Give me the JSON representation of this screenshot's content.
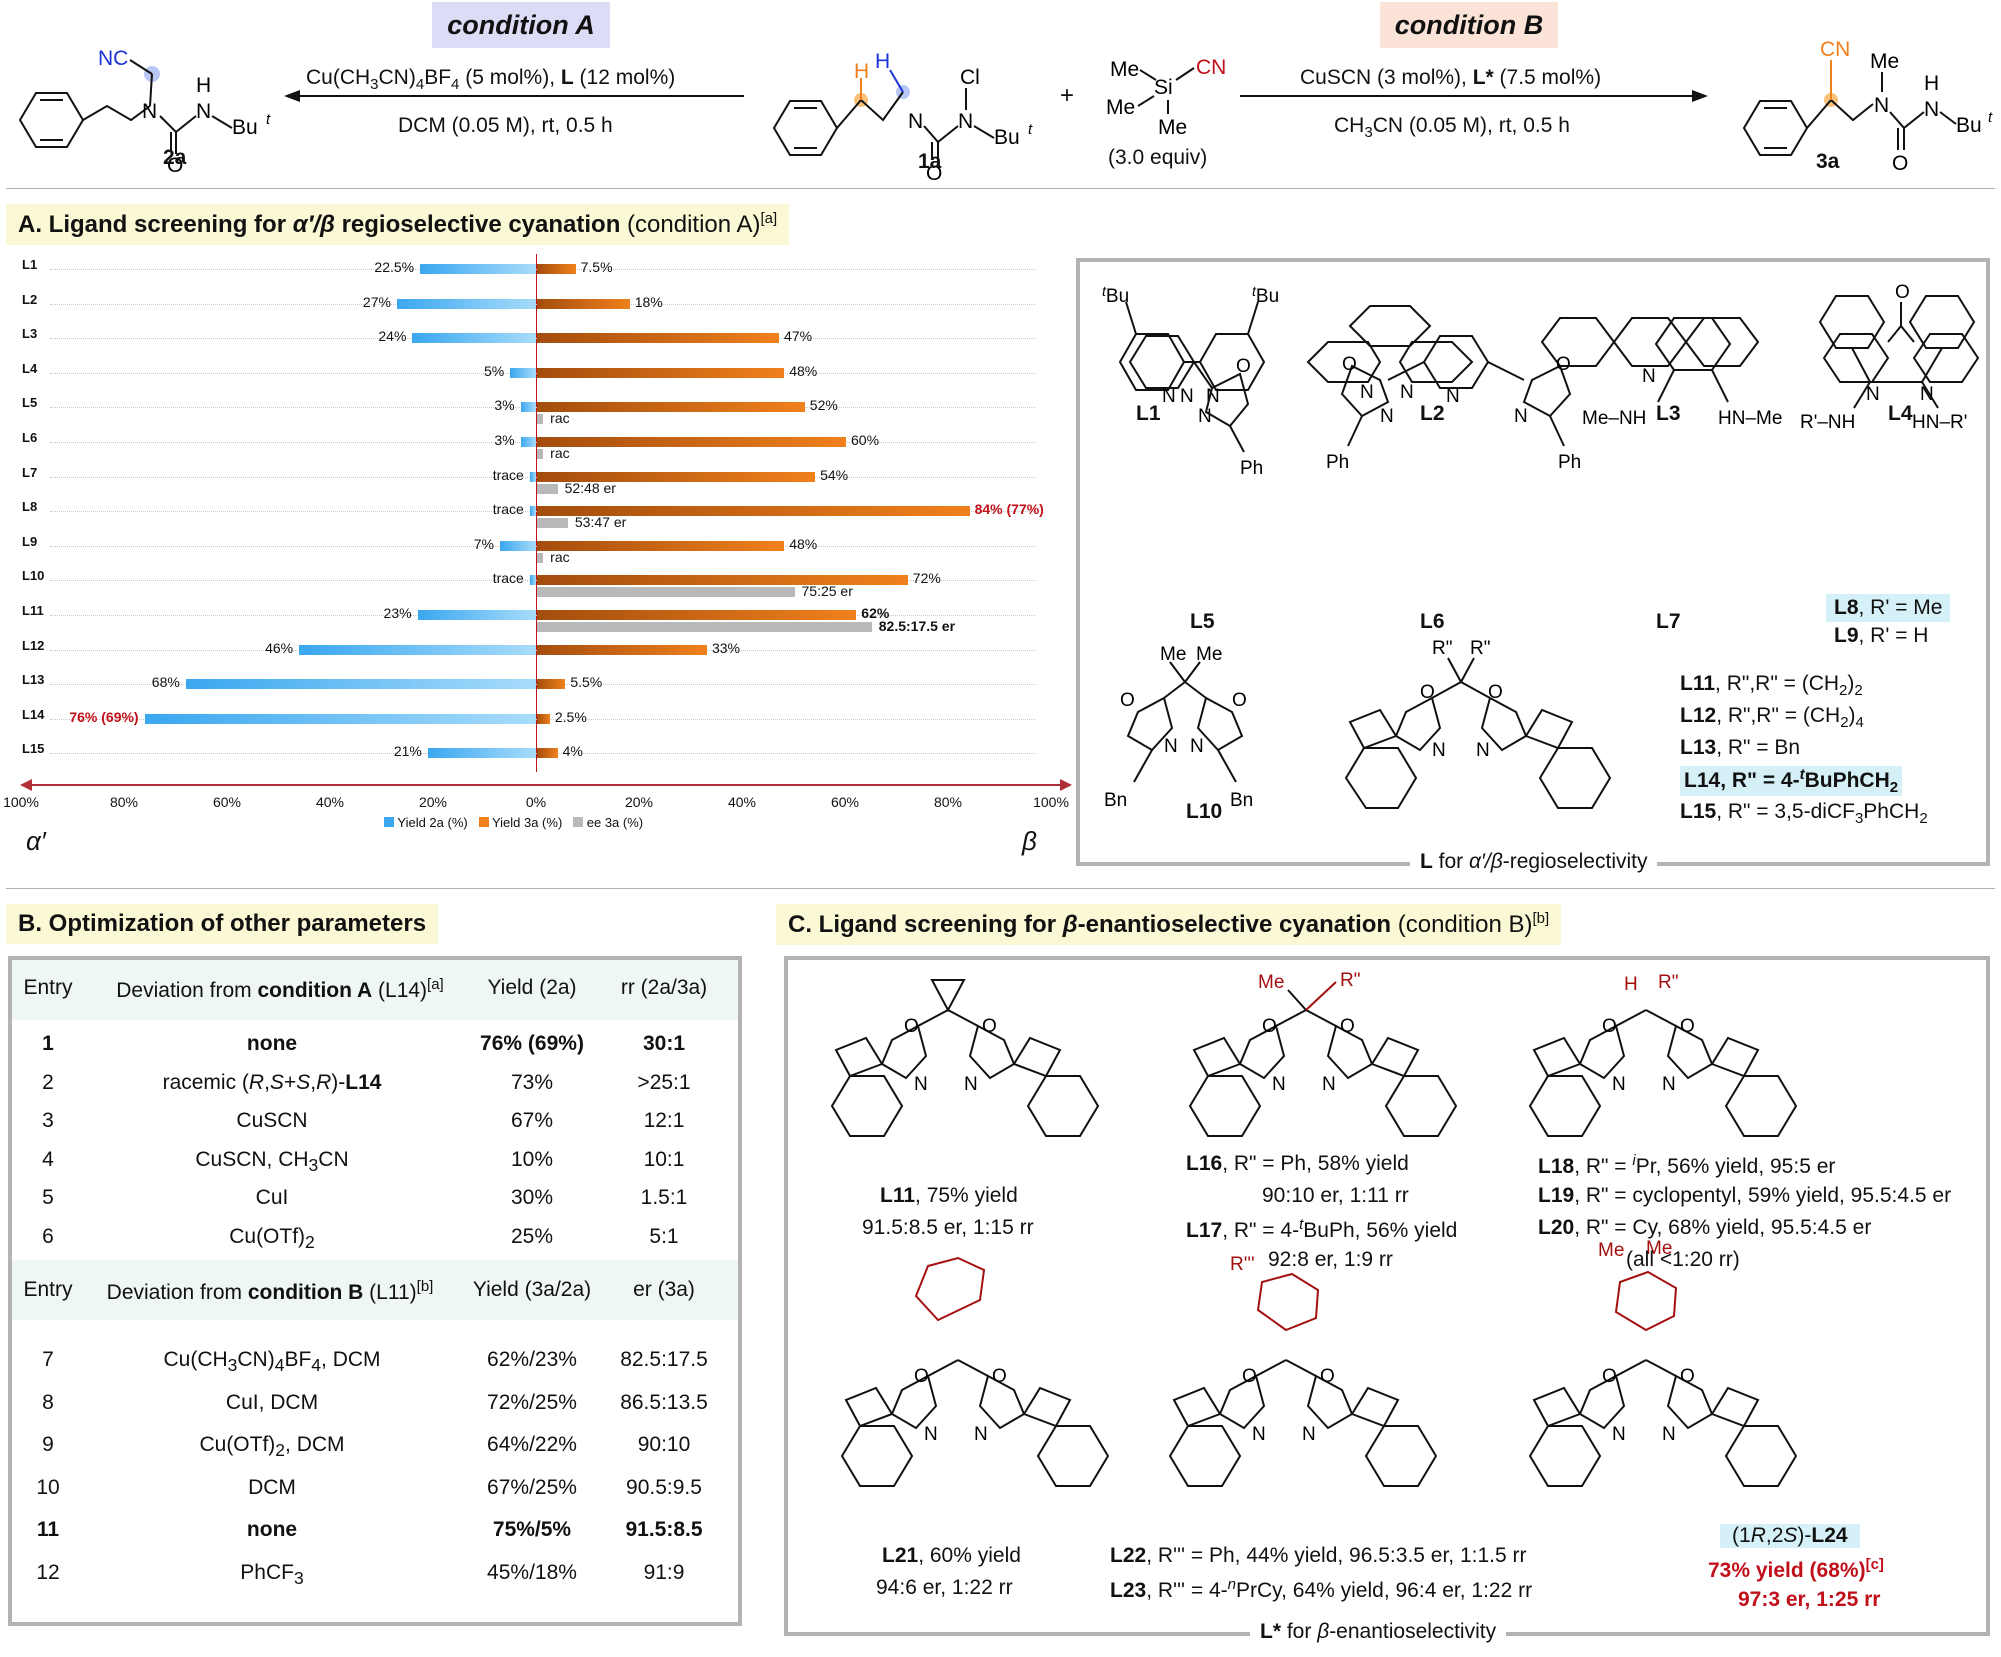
{
  "header": {
    "condition_a": "condition A",
    "condition_b": "condition B",
    "cond_a_line1_pre": "Cu(CH",
    "cond_a_line1_sub3": "3",
    "cond_a_line1_mid": "CN)",
    "cond_a_line1_sub4": "4",
    "cond_a_line1_post": "BF",
    "cond_a_line1_sub4b": "4",
    "cond_a_line1_cat": " (5 mol%), ",
    "cond_a_line1_L": "L",
    "cond_a_line1_end": " (12 mol%)",
    "cond_a_line2": "DCM (0.05 M), rt, 0.5 h",
    "cond_b_line1_pre": "CuSCN (3 mol%), ",
    "cond_b_line1_L": "L*",
    "cond_b_line1_end": " (7.5 mol%)",
    "cond_b_line2_pre": "CH",
    "cond_b_line2_sub": "3",
    "cond_b_line2_post": "CN (0.05 M), rt, 0.5 h",
    "plus": "+",
    "reagent_equiv": "(3.0 equiv)",
    "compound_2a": "2a",
    "compound_1a": "1a",
    "compound_3a": "3a"
  },
  "section_a": {
    "title_pre": "A. Ligand screening for ",
    "title_greek": "α′/β",
    "title_post": " regioselective cyanation",
    "title_cond": " (condition A)",
    "title_sup": "[a]"
  },
  "chart_data": {
    "type": "bar",
    "title": "Ligand screening for α′/β regioselective cyanation",
    "categories": [
      "L1",
      "L2",
      "L3",
      "L4",
      "L5",
      "L6",
      "L7",
      "L8",
      "L9",
      "L10",
      "L11",
      "L12",
      "L13",
      "L14",
      "L15"
    ],
    "series": [
      {
        "name": "Yield 2a (%)",
        "values": [
          22.5,
          27,
          24,
          5,
          3,
          3,
          1.2,
          1.2,
          7,
          1.2,
          23,
          46,
          68,
          76,
          21
        ],
        "labels": [
          "22.5%",
          "27%",
          "24%",
          "5%",
          "3%",
          "3%",
          "trace",
          "trace",
          "7%",
          "trace",
          "23%",
          "46%",
          "68%",
          "76% (69%)",
          "21%"
        ]
      },
      {
        "name": "Yield 3a (%)",
        "values": [
          7.5,
          18,
          47,
          48,
          52,
          60,
          54,
          84,
          48,
          72,
          62,
          33,
          5.5,
          2.5,
          4
        ],
        "labels": [
          "7.5%",
          "18%",
          "47%",
          "48%",
          "52%",
          "60%",
          "54%",
          "84% (77%)",
          "48%",
          "72%",
          "62%",
          "33%",
          "5.5%",
          "2.5%",
          "4%"
        ]
      },
      {
        "name": "ee 3a (%)",
        "values": [
          null,
          null,
          null,
          null,
          1.2,
          1.2,
          4,
          6,
          1.2,
          50,
          65,
          null,
          null,
          null,
          null
        ],
        "labels": [
          "",
          "",
          "",
          "",
          "rac",
          "rac",
          "52:48 er",
          "53:47 er",
          "rac",
          "75:25 er",
          "82.5:17.5 er",
          "",
          "",
          "",
          ""
        ]
      }
    ],
    "x_ticks": [
      "100%",
      "80%",
      "60%",
      "40%",
      "20%",
      "0%",
      "20%",
      "40%",
      "60%",
      "80%",
      "100%"
    ],
    "xlim": [
      -100,
      100
    ],
    "left_axis_label": "α′",
    "right_axis_label": "β",
    "legend": [
      "Yield 2a (%)",
      "Yield 3a (%)",
      "ee 3a (%)"
    ]
  },
  "ligands_a": {
    "L1": "L1",
    "L2": "L2",
    "L3": "L3",
    "L4": "L4",
    "L5": "L5",
    "L6": "L6",
    "L7": "L7",
    "L8_name": "L8",
    "L8_rest": ", R' = Me",
    "L9_name": "L9",
    "L9_rest": ", R' = H",
    "L10": "L10",
    "L11_name": "L11",
    "L11_rest": ", R\",R\" = (CH",
    "L11_sub": "2",
    "L11_end": ")",
    "L11_sub2": "2",
    "L12_name": "L12",
    "L12_rest": ", R\",R\" = (CH",
    "L12_sub": "2",
    "L12_end": ")",
    "L12_sub2": "4",
    "L13_name": "L13",
    "L13_rest": ", R\" = Bn",
    "L14_name": "L14",
    "L14_rest": ", R\" = 4-",
    "L14_sup": "t",
    "L14_end": "BuPhCH",
    "L14_sub": "2",
    "L15_name": "L15",
    "L15_rest": ", R\" = 3,5-diCF",
    "L15_sub": "3",
    "L15_end": "PhCH",
    "L15_sub2": "2",
    "caption_pre": "L",
    "caption_post": " for ",
    "caption_greek": "α′/β",
    "caption_end": "-regioselectivity"
  },
  "section_b": {
    "title": "B. Optimization of other parameters",
    "head1": {
      "entry": "Entry",
      "deviation_pre": "Deviation from ",
      "deviation_cond": "condition A",
      "deviation_lig": " (L14)",
      "deviation_sup": "[a]",
      "yield": "Yield (2a)",
      "rr": "rr (2a/3a)"
    },
    "rows_a": [
      {
        "entry": "1",
        "deviation": "none",
        "yield": "76% (69%)",
        "ratio": "30:1",
        "bold": true
      },
      {
        "entry": "2",
        "deviation": "racemic (R,S+S,R)-L14",
        "yield": "73%",
        "ratio": ">25:1"
      },
      {
        "entry": "3",
        "deviation": "CuSCN",
        "yield": "67%",
        "ratio": "12:1"
      },
      {
        "entry": "4",
        "deviation": "CuSCN, CH3CN",
        "yield": "10%",
        "ratio": "10:1"
      },
      {
        "entry": "5",
        "deviation": "CuI",
        "yield": "30%",
        "ratio": "1.5:1"
      },
      {
        "entry": "6",
        "deviation": "Cu(OTf)2",
        "yield": "25%",
        "ratio": "5:1"
      }
    ],
    "head2": {
      "entry": "Entry",
      "deviation_pre": "Deviation from ",
      "deviation_cond": "condition B",
      "deviation_lig": " (L11)",
      "deviation_sup": "[b]",
      "yield": "Yield (3a/2a)",
      "er": "er (3a)"
    },
    "rows_b": [
      {
        "entry": "7",
        "deviation": "Cu(CH3CN)4BF4, DCM",
        "yield": "62%/23%",
        "ratio": "82.5:17.5"
      },
      {
        "entry": "8",
        "deviation": "CuI, DCM",
        "yield": "72%/25%",
        "ratio": "86.5:13.5"
      },
      {
        "entry": "9",
        "deviation": "Cu(OTf)2, DCM",
        "yield": "64%/22%",
        "ratio": "90:10"
      },
      {
        "entry": "10",
        "deviation": "DCM",
        "yield": "67%/25%",
        "ratio": "90.5:9.5"
      },
      {
        "entry": "11",
        "deviation": "none",
        "yield": "75%/5%",
        "ratio": "91.5:8.5",
        "bold": true
      },
      {
        "entry": "12",
        "deviation": "PhCF3",
        "yield": "45%/18%",
        "ratio": "91:9"
      }
    ]
  },
  "section_c": {
    "title_pre": "C. Ligand screening for ",
    "title_greek": "β",
    "title_post": "-enantioselective cyanation",
    "title_cond": " (condition B)",
    "title_sup": "[b]",
    "L11_a": "L11",
    "L11_b": ", 75% yield",
    "L11_c": "91.5:8.5 er, 1:15 rr",
    "L16_a": "L16",
    "L16_b": ", R\" = Ph, 58% yield",
    "L16_c": "90:10 er, 1:11 rr",
    "L17_a": "L17",
    "L17_b": ", R\" = 4-",
    "L17_sup": "t",
    "L17_b2": "BuPh, 56% yield",
    "L17_c": "92:8 er, 1:9 rr",
    "L18_a": "L18",
    "L18_b": ", R\" = ",
    "L18_sup": "i",
    "L18_b2": "Pr, 56% yield, 95:5 er",
    "L19_a": "L19",
    "L19_b": ", R\" = cyclopentyl, 59% yield, 95.5:4.5 er",
    "L20_a": "L20",
    "L20_b": ", R\" = Cy, 68% yield, 95.5:4.5 er",
    "L20_c": "(all <1:20 rr)",
    "L21_a": "L21",
    "L21_b": ", 60% yield",
    "L21_c": "94:6 er, 1:22 rr",
    "L22_a": "L22",
    "L22_b": ", R''' = Ph, 44% yield, 96.5:3.5 er, 1:1.5 rr",
    "L23_a": "L23",
    "L23_b": ", R''' = 4-",
    "L23_sup": "n",
    "L23_b2": "PrCy, 64% yield, 96:4 er, 1:22 rr",
    "L24_pre": "(1",
    "L24_R": "R",
    "L24_mid": ",2",
    "L24_S": "S",
    "L24_post": ")-",
    "L24_name": "L24",
    "L24_yield": "73% yield (68%)",
    "L24_sup": "[c]",
    "L24_er": "97:3 er, 1:25 rr",
    "caption_pre": "L*",
    "caption_post": " for ",
    "caption_greek": "β",
    "caption_end": "-enantioselectivity"
  },
  "colors": {
    "blue": "#3aa7ef",
    "orange": "#f0801c",
    "gray": "#b9b9b9",
    "red": "#c0101a",
    "condA_bg": "#dcdcf7",
    "condB_bg": "#fbe3d7",
    "highlight": "#d6f0f7"
  }
}
